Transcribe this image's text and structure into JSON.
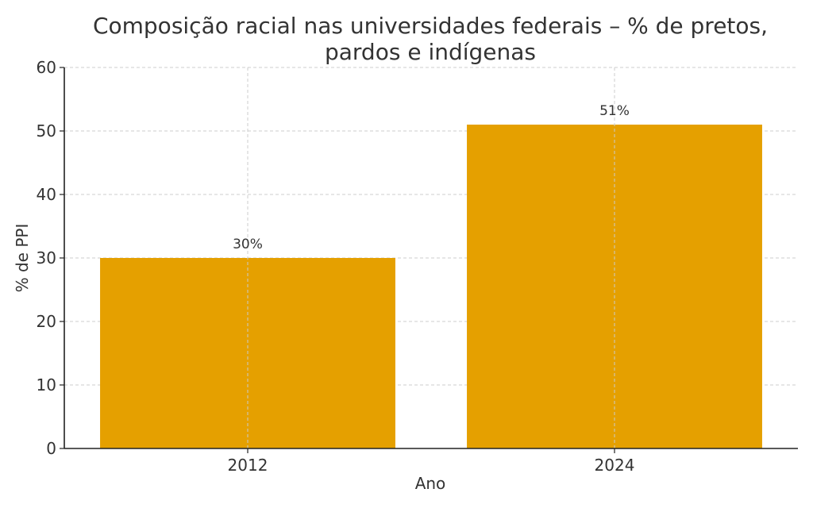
{
  "chart_data": {
    "type": "bar",
    "title_lines": [
      "Composição racial nas universidades federais – % de pretos,",
      "pardos e indígenas"
    ],
    "xlabel": "Ano",
    "ylabel": "% de PPI",
    "categories": [
      "2012",
      "2024"
    ],
    "values": [
      30,
      51
    ],
    "data_labels": [
      "30%",
      "51%"
    ],
    "ylim": [
      0,
      60
    ],
    "yticks": [
      0,
      10,
      20,
      30,
      40,
      50,
      60
    ],
    "grid": true,
    "bar_color": "#E5A000"
  }
}
